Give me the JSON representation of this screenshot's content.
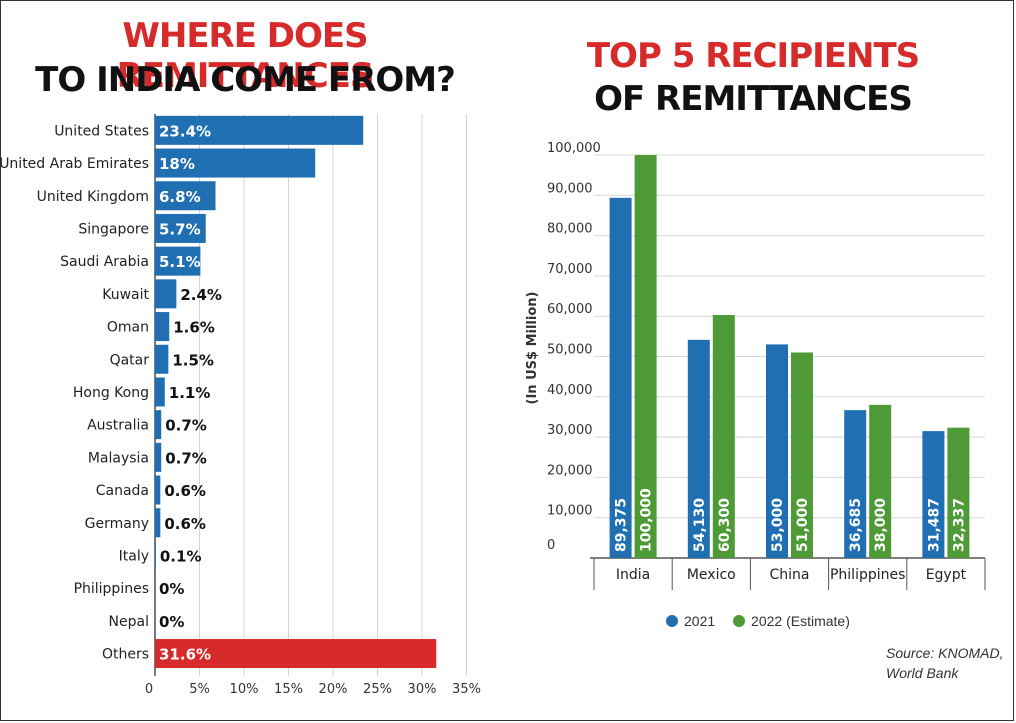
{
  "left_chart": {
    "title_line1": "WHERE DOES REMITTANCES",
    "title_line2": "TO INDIA COME FROM?",
    "chart_data": {
      "type": "bar",
      "orientation": "horizontal",
      "categories": [
        "United States",
        "United Arab Emirates",
        "United Kingdom",
        "Singapore",
        "Saudi Arabia",
        "Kuwait",
        "Oman",
        "Qatar",
        "Hong Kong",
        "Australia",
        "Malaysia",
        "Canada",
        "Germany",
        "Italy",
        "Philippines",
        "Nepal",
        "Others"
      ],
      "values": [
        23.4,
        18,
        6.8,
        5.7,
        5.1,
        2.4,
        1.6,
        1.5,
        1.1,
        0.7,
        0.7,
        0.6,
        0.6,
        0.1,
        0,
        0,
        31.6
      ],
      "value_labels": [
        "23.4%",
        "18%",
        "6.8%",
        "5.7%",
        "5.1%",
        "2.4%",
        "1.6%",
        "1.5%",
        "1.1%",
        "0.7%",
        "0.7%",
        "0.6%",
        "0.6%",
        "0.1%",
        "0%",
        "0%",
        "31.6%"
      ],
      "xlim": [
        0,
        35
      ],
      "x_ticks": [
        0,
        5,
        10,
        15,
        20,
        25,
        30,
        35
      ],
      "x_tick_labels": [
        "0",
        "5%",
        "10%",
        "15%",
        "20%",
        "25%",
        "30%",
        "35%"
      ],
      "grid": true,
      "colors": {
        "default": "#1f6fb2",
        "highlight": "#d72a2a"
      },
      "highlight_category": "Others"
    }
  },
  "right_chart": {
    "title_line1": "TOP 5 RECIPIENTS",
    "title_line2": "OF REMITTANCES",
    "chart_data": {
      "type": "bar",
      "categories": [
        "India",
        "Mexico",
        "China",
        "Philippines",
        "Egypt"
      ],
      "series": [
        {
          "name": "2021",
          "values": [
            89375,
            54130,
            53000,
            36685,
            31487
          ],
          "labels": [
            "89,375",
            "54,130",
            "53,000",
            "36,685",
            "31,487"
          ],
          "color": "#1f6fb2"
        },
        {
          "name": "2022 (Estimate)",
          "values": [
            100000,
            60300,
            51000,
            38000,
            32337
          ],
          "labels": [
            "100,000",
            "60,300",
            "51,000",
            "38,000",
            "32,337"
          ],
          "color": "#4e9a36"
        }
      ],
      "ylabel": "(In US$ Million)",
      "ylim": [
        0,
        100000
      ],
      "y_ticks": [
        0,
        10000,
        20000,
        30000,
        40000,
        50000,
        60000,
        70000,
        80000,
        90000,
        100000
      ],
      "y_tick_labels": [
        "0",
        "10,000",
        "20,000",
        "30,000",
        "40,000",
        "50,000",
        "60,000",
        "70,000",
        "80,000",
        "90,000",
        "100,000"
      ],
      "grid": true,
      "legend_position": "bottom"
    },
    "source_line1": "Source: KNOMAD,",
    "source_line2": "World Bank"
  }
}
